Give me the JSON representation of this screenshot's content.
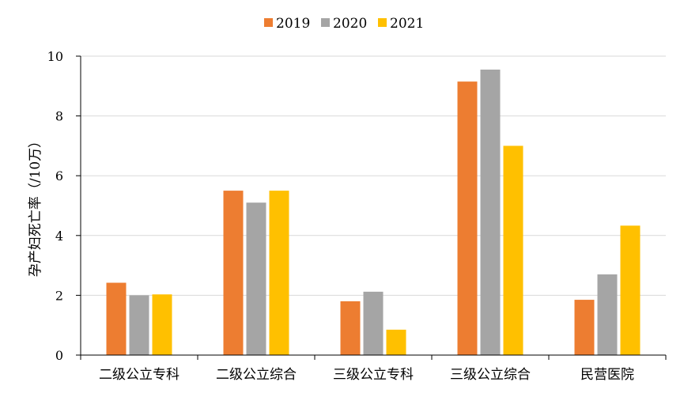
{
  "chart_data": {
    "type": "bar",
    "title": "",
    "xlabel": "",
    "ylabel": "孕产妇死亡率（/10万）",
    "ylim": [
      0,
      10
    ],
    "yticks": [
      0,
      2,
      4,
      6,
      8,
      10
    ],
    "grid": true,
    "legend_position": "top-center",
    "categories": [
      "二级公立专科",
      "二级公立综合",
      "三级公立专科",
      "三级公立综合",
      "民营医院"
    ],
    "series": [
      {
        "name": "2019",
        "color": "#ED7D31",
        "values": [
          2.42,
          5.5,
          1.8,
          9.15,
          1.85
        ]
      },
      {
        "name": "2020",
        "color": "#A5A5A5",
        "values": [
          2.0,
          5.1,
          2.12,
          9.55,
          2.7
        ]
      },
      {
        "name": "2021",
        "color": "#FFC000",
        "values": [
          2.03,
          5.5,
          0.85,
          7.0,
          4.33
        ]
      }
    ]
  }
}
